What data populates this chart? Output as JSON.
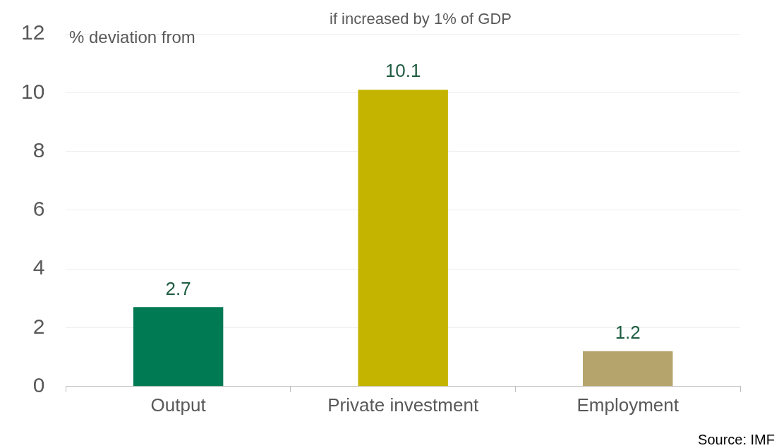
{
  "chart_data": {
    "type": "bar",
    "title": "if increased by 1% of GDP",
    "ylabel": "% deviation from",
    "categories": [
      "Output",
      "Private investment",
      "Employment"
    ],
    "values": [
      2.7,
      10.1,
      1.2
    ],
    "colors": [
      "#007a53",
      "#c4b400",
      "#b5a46b"
    ],
    "ylim": [
      0,
      12
    ],
    "yticks": [
      0,
      2,
      4,
      6,
      8,
      10,
      12
    ],
    "grid": "y",
    "data_labels": true,
    "annotations": [
      "Source: IMF"
    ]
  }
}
